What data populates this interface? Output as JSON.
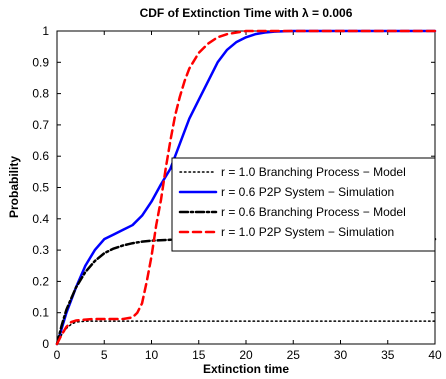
{
  "chart_data": {
    "type": "line",
    "title": "CDF of Extinction Time with λ = 0.006",
    "xlabel": "Extinction time",
    "ylabel": "Probability",
    "xlim": [
      0,
      40
    ],
    "ylim": [
      0,
      1
    ],
    "xticks": [
      0,
      5,
      10,
      15,
      20,
      25,
      30,
      35,
      40
    ],
    "yticks": [
      0,
      0.1,
      0.2,
      0.3,
      0.4,
      0.5,
      0.6,
      0.7,
      0.8,
      0.9,
      1
    ],
    "grid": false,
    "legend_position": "center-right",
    "series": [
      {
        "name": "r = 1.0 Branching Process − Model",
        "color": "#000000",
        "style": "dotted",
        "x": [
          0,
          0.5,
          1,
          1.5,
          2,
          3,
          40
        ],
        "y": [
          0,
          0.03,
          0.05,
          0.063,
          0.07,
          0.073,
          0.073
        ]
      },
      {
        "name": "r = 0.6 P2P System − Simulation",
        "color": "#0000ff",
        "style": "solid",
        "x": [
          0,
          0.5,
          1,
          2,
          3,
          4,
          5,
          6,
          7,
          8,
          9,
          10,
          11,
          12,
          13,
          14,
          15,
          16,
          17,
          18,
          19,
          20,
          21,
          22,
          23,
          24,
          25,
          30,
          35,
          40
        ],
        "y": [
          0,
          0.05,
          0.1,
          0.18,
          0.25,
          0.3,
          0.335,
          0.35,
          0.365,
          0.38,
          0.41,
          0.455,
          0.51,
          0.56,
          0.64,
          0.72,
          0.78,
          0.84,
          0.9,
          0.94,
          0.965,
          0.98,
          0.99,
          0.995,
          0.998,
          0.999,
          1.0,
          1.0,
          1.0,
          1.0
        ]
      },
      {
        "name": "r = 0.6 Branching Process − Model",
        "color": "#000000",
        "style": "dashdot",
        "x": [
          0,
          0.5,
          1,
          2,
          3,
          4,
          5,
          6,
          7,
          8,
          9,
          10,
          12,
          15,
          20,
          30,
          40
        ],
        "y": [
          0,
          0.06,
          0.11,
          0.18,
          0.23,
          0.265,
          0.29,
          0.305,
          0.315,
          0.322,
          0.327,
          0.33,
          0.333,
          0.334,
          0.335,
          0.335,
          0.335
        ]
      },
      {
        "name": "r = 1.0 P2P System − Simulation",
        "color": "#ff0000",
        "style": "dashed",
        "x": [
          0,
          0.5,
          1,
          1.5,
          2,
          3,
          4,
          5,
          6,
          7,
          8,
          8.5,
          9,
          9.5,
          10,
          10.5,
          11,
          11.5,
          12,
          12.5,
          13,
          13.5,
          14,
          15,
          16,
          17,
          18,
          19,
          20,
          22,
          25,
          30,
          35,
          40
        ],
        "y": [
          0,
          0.03,
          0.055,
          0.07,
          0.075,
          0.078,
          0.08,
          0.08,
          0.08,
          0.08,
          0.085,
          0.1,
          0.13,
          0.2,
          0.28,
          0.38,
          0.46,
          0.56,
          0.65,
          0.73,
          0.79,
          0.84,
          0.88,
          0.93,
          0.96,
          0.98,
          0.99,
          0.995,
          1.0,
          1.0,
          1.0,
          1.0,
          1.0,
          1.0
        ]
      }
    ]
  }
}
